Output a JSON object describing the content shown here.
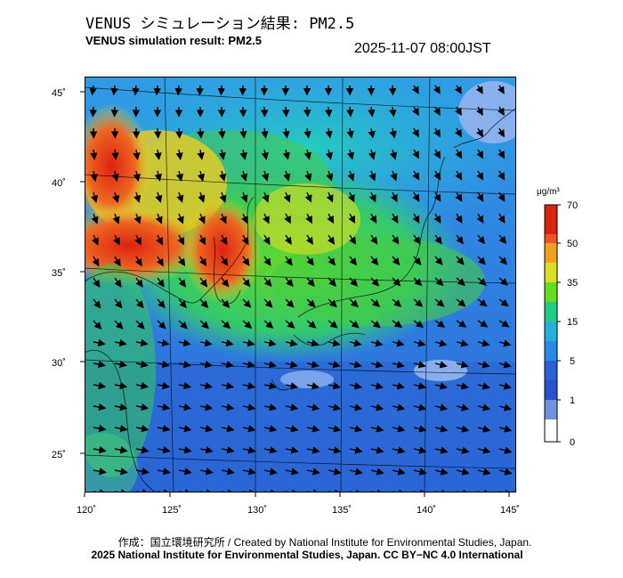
{
  "header": {
    "title_jp": "VENUS シミュレーション結果: PM2.5",
    "title_en": "VENUS simulation result: PM2.5",
    "timestamp": "2025-11-07 08:00JST"
  },
  "map": {
    "lon_labels": [
      "120˚",
      "125˚",
      "130˚",
      "135˚",
      "140˚",
      "145˚"
    ],
    "lat_labels": [
      "45˚",
      "40˚",
      "35˚",
      "30˚",
      "25˚"
    ],
    "lon_range": [
      120,
      145
    ],
    "lat_range": [
      23,
      46
    ]
  },
  "colorbar": {
    "unit": "μg/m³",
    "ticks": [
      "70",
      "50",
      "35",
      "15",
      "5",
      "1",
      "0"
    ],
    "colors": [
      "#ffffff",
      "#3355dd",
      "#33aaff",
      "#33cc88",
      "#44dd22",
      "#eedd22",
      "#ff8822",
      "#dd2211"
    ]
  },
  "footer": {
    "credit_line": "作成：国立環境研究所 / Created by National Institute for Environmental Studies, Japan.",
    "copyright_line": "2025 National Institute for Environmental Studies, Japan. CC BY−NC 4.0 International"
  }
}
